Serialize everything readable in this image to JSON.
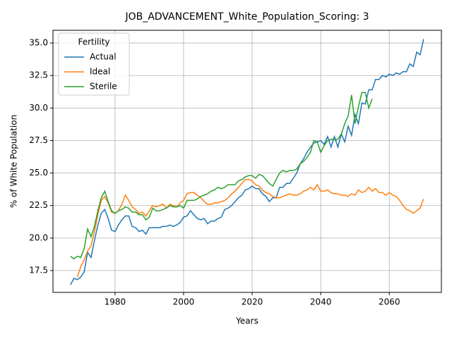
{
  "chart_data": {
    "type": "line",
    "title": "JOB_ADVANCEMENT_White_Population_Scoring: 3",
    "x_label": "Years",
    "y_label": "% of White Population",
    "legend_title": "Fertility",
    "legend_loc": "upper left",
    "grid": true,
    "xlim": [
      1961.9,
      2075.2
    ],
    "ylim": [
      15.82,
      35.98
    ],
    "xticks": [
      1980,
      2000,
      2020,
      2040,
      2060
    ],
    "yticks": [
      17.5,
      {
        "value": 20,
        "label": "20.0"
      },
      22.5,
      {
        "value": 25,
        "label": "25.0"
      },
      27.5,
      {
        "value": 30,
        "label": "30.0"
      },
      32.5,
      {
        "value": 35,
        "label": "35.0"
      }
    ],
    "x": [
      1967,
      1968,
      1969,
      1970,
      1971,
      1972,
      1973,
      1974,
      1975,
      1976,
      1977,
      1978,
      1979,
      1980,
      1981,
      1982,
      1983,
      1984,
      1985,
      1986,
      1987,
      1988,
      1989,
      1990,
      1991,
      1992,
      1993,
      1994,
      1995,
      1996,
      1997,
      1998,
      1999,
      2000,
      2001,
      2002,
      2003,
      2004,
      2005,
      2006,
      2007,
      2008,
      2009,
      2010,
      2011,
      2012,
      2013,
      2014,
      2015,
      2016,
      2017,
      2018,
      2019,
      2020,
      2021,
      2022,
      2023,
      2024,
      2025,
      2026,
      2027,
      2028,
      2029,
      2030,
      2031,
      2032,
      2033,
      2034,
      2035,
      2036,
      2037,
      2038,
      2039,
      2040,
      2041,
      2042,
      2043,
      2044,
      2045,
      2046,
      2047,
      2048,
      2049,
      2050,
      2051,
      2052,
      2053,
      2054,
      2055,
      2056,
      2057,
      2058,
      2059,
      2060,
      2061,
      2062,
      2063,
      2064,
      2065,
      2066,
      2067,
      2068,
      2069,
      2070
    ],
    "series": [
      {
        "name": "Actual",
        "color": "#1f77b4",
        "values": [
          16.4,
          16.9,
          16.8,
          17.0,
          17.4,
          18.9,
          18.5,
          19.8,
          21.0,
          21.9,
          22.2,
          21.5,
          20.6,
          20.5,
          21.0,
          21.4,
          21.7,
          21.7,
          20.9,
          20.8,
          20.5,
          20.6,
          20.3,
          20.8,
          20.8,
          20.8,
          20.8,
          20.9,
          20.9,
          21.0,
          20.9,
          21.0,
          21.2,
          21.6,
          21.7,
          22.1,
          21.8,
          21.5,
          21.4,
          21.5,
          21.1,
          21.3,
          21.3,
          21.5,
          21.6,
          22.2,
          22.3,
          22.5,
          22.8,
          23.1,
          23.3,
          23.7,
          23.8,
          24.0,
          23.8,
          23.8,
          23.4,
          23.2,
          22.8,
          23.1,
          23.1,
          23.9,
          23.9,
          24.2,
          24.2,
          24.6,
          25.0,
          25.7,
          26.1,
          26.6,
          27.0,
          27.3,
          27.4,
          27.5,
          27.2,
          27.8,
          27.0,
          27.8,
          27.0,
          28.0,
          27.4,
          28.6,
          27.9,
          29.5,
          28.8,
          30.4,
          30.3,
          31.4,
          31.4,
          32.2,
          32.2,
          32.5,
          32.4,
          32.6,
          32.5,
          32.7,
          32.6,
          32.8,
          32.8,
          33.4,
          33.2,
          34.3,
          34.1,
          35.3
        ]
      },
      {
        "name": "Ideal",
        "color": "#ff7f0e",
        "values": [
          null,
          null,
          17.0,
          17.8,
          18.3,
          19.0,
          19.4,
          20.5,
          21.8,
          22.9,
          23.2,
          22.7,
          22.0,
          21.9,
          22.1,
          22.6,
          23.3,
          22.9,
          22.4,
          22.2,
          21.9,
          22.0,
          21.7,
          22.1,
          22.5,
          22.4,
          22.5,
          22.6,
          22.3,
          22.6,
          22.5,
          22.4,
          22.7,
          22.9,
          23.4,
          23.5,
          23.5,
          23.3,
          23.1,
          22.8,
          22.6,
          22.6,
          22.7,
          22.7,
          22.8,
          22.9,
          23.1,
          23.4,
          23.6,
          23.9,
          24.2,
          24.5,
          24.5,
          24.4,
          24.1,
          24.0,
          23.7,
          23.5,
          23.4,
          23.2,
          23.1,
          23.1,
          23.2,
          23.3,
          23.4,
          23.3,
          23.3,
          23.4,
          23.6,
          23.7,
          23.9,
          23.7,
          24.1,
          23.6,
          23.6,
          23.7,
          23.5,
          23.4,
          23.4,
          23.3,
          23.3,
          23.2,
          23.4,
          23.3,
          23.7,
          23.5,
          23.6,
          23.9,
          23.6,
          23.8,
          23.5,
          23.5,
          23.3,
          23.5,
          23.3,
          23.2,
          22.9,
          22.5,
          22.2,
          22.1,
          21.9,
          22.1,
          22.3,
          23.0
        ]
      },
      {
        "name": "Sterile",
        "color": "#2ca02c",
        "values": [
          18.6,
          18.4,
          18.6,
          18.5,
          19.2,
          20.7,
          20.1,
          20.9,
          22.1,
          23.1,
          23.6,
          22.8,
          22.1,
          21.9,
          22.1,
          22.2,
          22.4,
          22.3,
          22.0,
          22.0,
          21.8,
          21.8,
          21.4,
          21.6,
          22.3,
          22.1,
          22.1,
          22.2,
          22.3,
          22.5,
          22.4,
          22.4,
          22.5,
          22.3,
          22.9,
          22.9,
          22.9,
          23.0,
          23.2,
          23.3,
          23.4,
          23.6,
          23.7,
          23.9,
          23.8,
          23.9,
          24.1,
          24.1,
          24.1,
          24.4,
          24.5,
          24.7,
          24.8,
          24.8,
          24.6,
          24.9,
          24.8,
          24.5,
          24.2,
          24.0,
          24.5,
          25.0,
          25.2,
          25.1,
          25.2,
          25.2,
          25.3,
          25.7,
          25.9,
          26.2,
          26.6,
          27.5,
          27.4,
          26.6,
          27.1,
          27.5,
          27.6,
          27.6,
          27.6,
          28.0,
          28.8,
          29.4,
          31.0,
          28.8,
          30.1,
          31.2,
          31.2,
          30.0,
          30.7,
          null,
          null,
          null,
          null,
          null,
          null,
          null,
          null,
          null,
          null,
          null,
          null,
          null,
          null,
          null
        ]
      }
    ]
  }
}
